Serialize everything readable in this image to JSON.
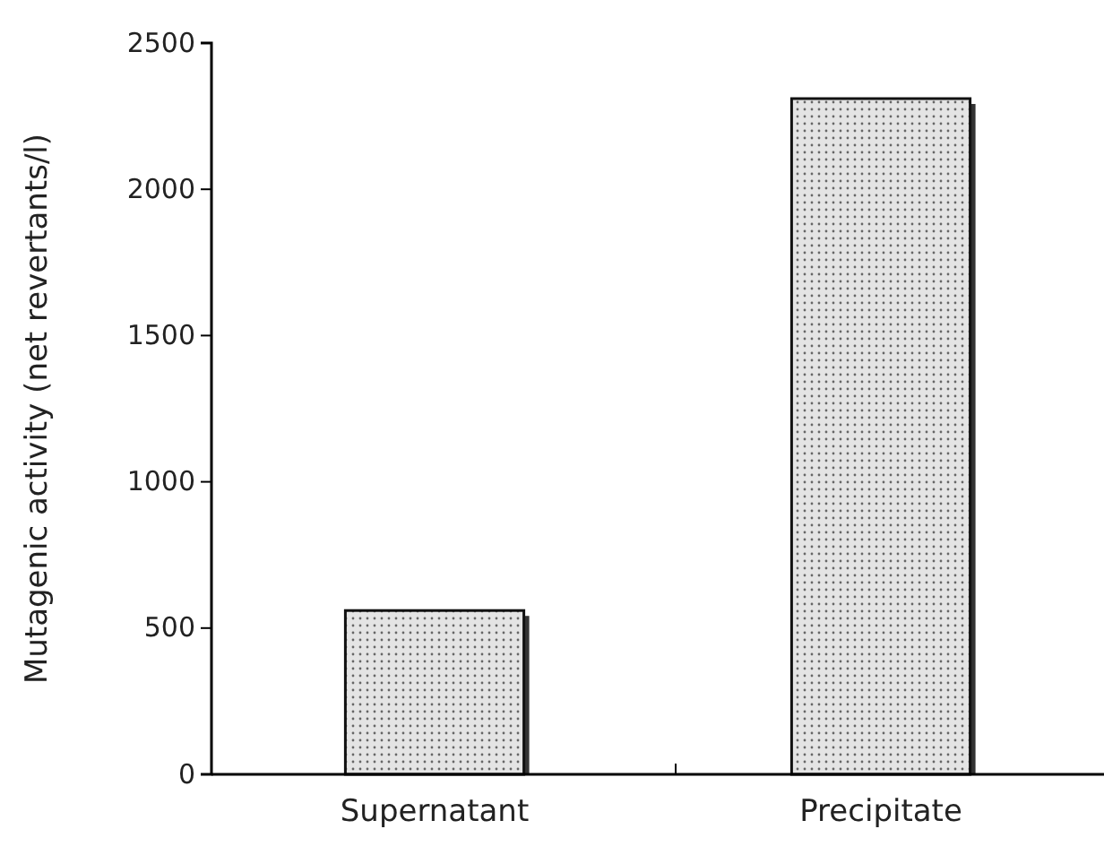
{
  "chart_data": {
    "type": "bar",
    "ylabel": "Mutagenic activity (net revertants/l)",
    "categories": [
      "Supernatant",
      "Precipitate"
    ],
    "values": [
      560,
      2310
    ],
    "color": "#e4e4e4",
    "ylim": [
      0,
      2500
    ],
    "yticks": [
      0,
      500,
      1000,
      1500,
      2000,
      2500
    ],
    "grid": false
  }
}
